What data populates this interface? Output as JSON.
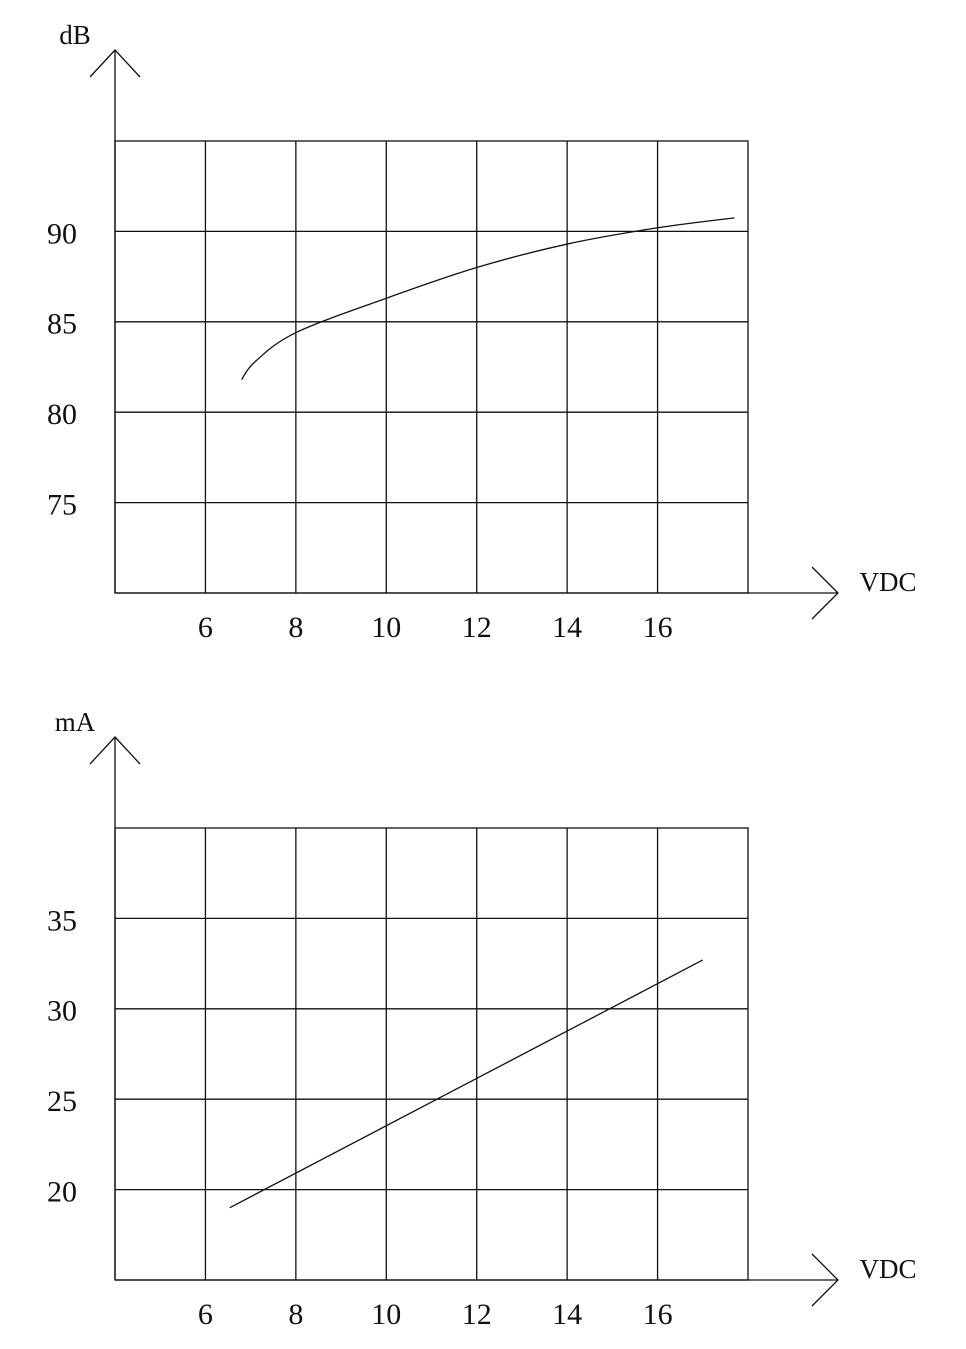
{
  "chart_data": [
    {
      "type": "line",
      "y_label": "dB",
      "x_label": "VDC",
      "x": [
        6.8,
        7.1,
        8,
        10,
        12,
        14,
        16,
        17.7
      ],
      "values": [
        81.8,
        82.8,
        84.4,
        86.3,
        88.0,
        89.3,
        90.2,
        90.75
      ],
      "color": "#111111",
      "xlim": [
        4,
        18
      ],
      "ylim": [
        70,
        95
      ],
      "xticks": [
        6,
        8,
        10,
        12,
        14,
        16
      ],
      "yticks": [
        75,
        80,
        85,
        90
      ],
      "grid": true
    },
    {
      "type": "line",
      "y_label": "mA",
      "x_label": "VDC",
      "x": [
        6.54,
        17.0
      ],
      "values": [
        19.0,
        32.7
      ],
      "color": "#111111",
      "xlim": [
        4,
        18
      ],
      "ylim": [
        15,
        40
      ],
      "xticks": [
        6,
        8,
        10,
        12,
        14,
        16
      ],
      "yticks": [
        20,
        25,
        30,
        35
      ],
      "grid": true
    }
  ]
}
